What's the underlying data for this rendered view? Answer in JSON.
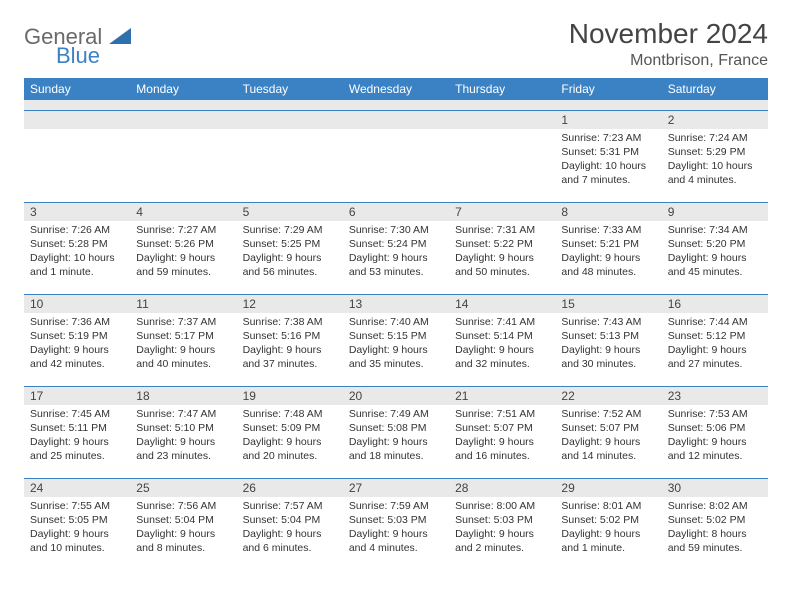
{
  "brand": {
    "general": "General",
    "blue": "Blue"
  },
  "header": {
    "title": "November 2024",
    "location": "Montbrison, France"
  },
  "colors": {
    "accent": "#3b82c4",
    "dayband": "#e9e9e9",
    "text": "#333333"
  },
  "dayNames": [
    "Sunday",
    "Monday",
    "Tuesday",
    "Wednesday",
    "Thursday",
    "Friday",
    "Saturday"
  ],
  "weeks": [
    [
      null,
      null,
      null,
      null,
      null,
      {
        "n": "1",
        "sr": "7:23 AM",
        "ss": "5:31 PM",
        "dl": "10 hours and 7 minutes."
      },
      {
        "n": "2",
        "sr": "7:24 AM",
        "ss": "5:29 PM",
        "dl": "10 hours and 4 minutes."
      }
    ],
    [
      {
        "n": "3",
        "sr": "7:26 AM",
        "ss": "5:28 PM",
        "dl": "10 hours and 1 minute."
      },
      {
        "n": "4",
        "sr": "7:27 AM",
        "ss": "5:26 PM",
        "dl": "9 hours and 59 minutes."
      },
      {
        "n": "5",
        "sr": "7:29 AM",
        "ss": "5:25 PM",
        "dl": "9 hours and 56 minutes."
      },
      {
        "n": "6",
        "sr": "7:30 AM",
        "ss": "5:24 PM",
        "dl": "9 hours and 53 minutes."
      },
      {
        "n": "7",
        "sr": "7:31 AM",
        "ss": "5:22 PM",
        "dl": "9 hours and 50 minutes."
      },
      {
        "n": "8",
        "sr": "7:33 AM",
        "ss": "5:21 PM",
        "dl": "9 hours and 48 minutes."
      },
      {
        "n": "9",
        "sr": "7:34 AM",
        "ss": "5:20 PM",
        "dl": "9 hours and 45 minutes."
      }
    ],
    [
      {
        "n": "10",
        "sr": "7:36 AM",
        "ss": "5:19 PM",
        "dl": "9 hours and 42 minutes."
      },
      {
        "n": "11",
        "sr": "7:37 AM",
        "ss": "5:17 PM",
        "dl": "9 hours and 40 minutes."
      },
      {
        "n": "12",
        "sr": "7:38 AM",
        "ss": "5:16 PM",
        "dl": "9 hours and 37 minutes."
      },
      {
        "n": "13",
        "sr": "7:40 AM",
        "ss": "5:15 PM",
        "dl": "9 hours and 35 minutes."
      },
      {
        "n": "14",
        "sr": "7:41 AM",
        "ss": "5:14 PM",
        "dl": "9 hours and 32 minutes."
      },
      {
        "n": "15",
        "sr": "7:43 AM",
        "ss": "5:13 PM",
        "dl": "9 hours and 30 minutes."
      },
      {
        "n": "16",
        "sr": "7:44 AM",
        "ss": "5:12 PM",
        "dl": "9 hours and 27 minutes."
      }
    ],
    [
      {
        "n": "17",
        "sr": "7:45 AM",
        "ss": "5:11 PM",
        "dl": "9 hours and 25 minutes."
      },
      {
        "n": "18",
        "sr": "7:47 AM",
        "ss": "5:10 PM",
        "dl": "9 hours and 23 minutes."
      },
      {
        "n": "19",
        "sr": "7:48 AM",
        "ss": "5:09 PM",
        "dl": "9 hours and 20 minutes."
      },
      {
        "n": "20",
        "sr": "7:49 AM",
        "ss": "5:08 PM",
        "dl": "9 hours and 18 minutes."
      },
      {
        "n": "21",
        "sr": "7:51 AM",
        "ss": "5:07 PM",
        "dl": "9 hours and 16 minutes."
      },
      {
        "n": "22",
        "sr": "7:52 AM",
        "ss": "5:07 PM",
        "dl": "9 hours and 14 minutes."
      },
      {
        "n": "23",
        "sr": "7:53 AM",
        "ss": "5:06 PM",
        "dl": "9 hours and 12 minutes."
      }
    ],
    [
      {
        "n": "24",
        "sr": "7:55 AM",
        "ss": "5:05 PM",
        "dl": "9 hours and 10 minutes."
      },
      {
        "n": "25",
        "sr": "7:56 AM",
        "ss": "5:04 PM",
        "dl": "9 hours and 8 minutes."
      },
      {
        "n": "26",
        "sr": "7:57 AM",
        "ss": "5:04 PM",
        "dl": "9 hours and 6 minutes."
      },
      {
        "n": "27",
        "sr": "7:59 AM",
        "ss": "5:03 PM",
        "dl": "9 hours and 4 minutes."
      },
      {
        "n": "28",
        "sr": "8:00 AM",
        "ss": "5:03 PM",
        "dl": "9 hours and 2 minutes."
      },
      {
        "n": "29",
        "sr": "8:01 AM",
        "ss": "5:02 PM",
        "dl": "9 hours and 1 minute."
      },
      {
        "n": "30",
        "sr": "8:02 AM",
        "ss": "5:02 PM",
        "dl": "8 hours and 59 minutes."
      }
    ]
  ],
  "labels": {
    "sunrise": "Sunrise:",
    "sunset": "Sunset:",
    "daylight": "Daylight:"
  }
}
